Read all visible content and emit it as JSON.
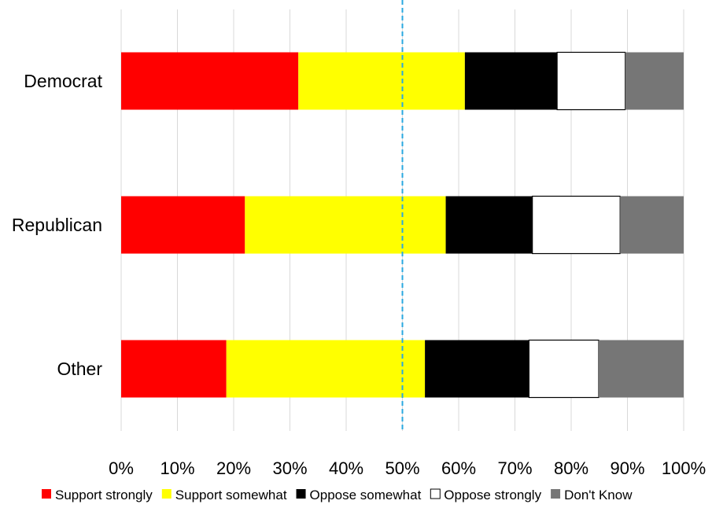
{
  "chart_data": {
    "type": "bar",
    "orientation": "horizontal",
    "stacked": true,
    "categories": [
      "Democrat",
      "Republican",
      "Other"
    ],
    "series": [
      {
        "name": "Support strongly",
        "color": "#ff0000",
        "values": [
          31.5,
          22.0,
          18.7
        ]
      },
      {
        "name": "Support somewhat",
        "color": "#ffff00",
        "values": [
          29.6,
          35.7,
          35.3
        ]
      },
      {
        "name": "Oppose somewhat",
        "color": "#000000",
        "values": [
          16.4,
          15.4,
          18.5
        ]
      },
      {
        "name": "Oppose strongly",
        "color": "#ffffff",
        "values": [
          12.1,
          15.6,
          12.4
        ]
      },
      {
        "name": "Don't Know",
        "color": "#767676",
        "values": [
          10.4,
          11.3,
          15.1
        ]
      }
    ],
    "xlim": [
      0,
      100
    ],
    "x_ticks": [
      "0%",
      "10%",
      "20%",
      "30%",
      "40%",
      "50%",
      "60%",
      "70%",
      "80%",
      "90%",
      "100%"
    ],
    "reference_line": {
      "value": 50,
      "color": "#29a8e0",
      "style": "dashed"
    },
    "grid": true,
    "legend_position": "bottom"
  }
}
